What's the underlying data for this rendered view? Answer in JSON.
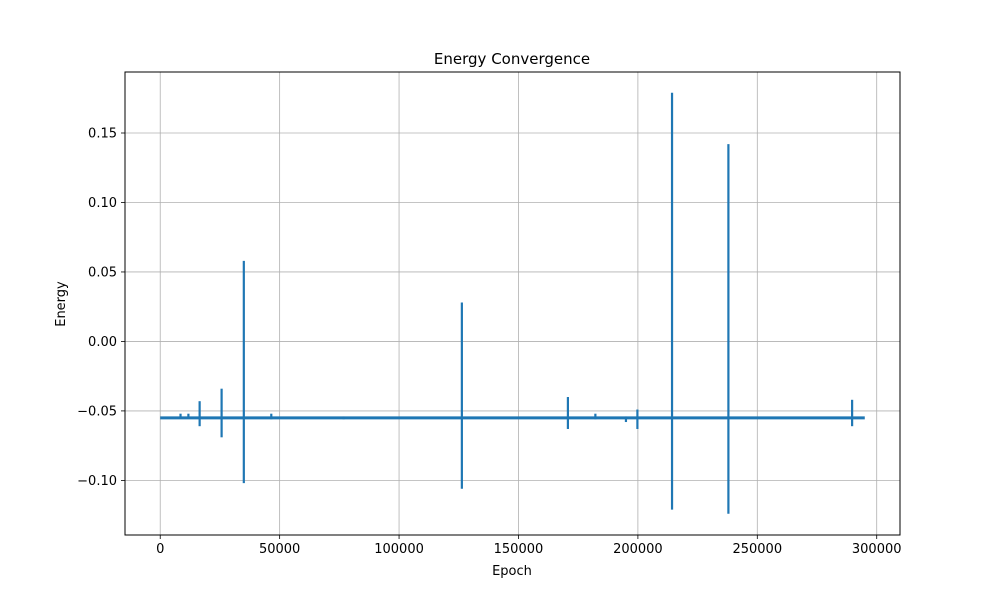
{
  "chart_data": {
    "type": "line",
    "title": "Energy Convergence",
    "xlabel": "Epoch",
    "ylabel": "Energy",
    "xlim": [
      -14750,
      309750
    ],
    "ylim": [
      -0.1393,
      0.1939
    ],
    "grid": true,
    "legend": "none",
    "xticks": [
      0,
      50000,
      100000,
      150000,
      200000,
      250000,
      300000
    ],
    "xtick_labels": [
      "0",
      "50000",
      "100000",
      "150000",
      "200000",
      "250000",
      "300000"
    ],
    "yticks": [
      -0.1,
      -0.05,
      0.0,
      0.05,
      0.1,
      0.15
    ],
    "ytick_labels": [
      "−0.10",
      "−0.05",
      "0.00",
      "0.05",
      "0.10",
      "0.15"
    ],
    "series": [
      {
        "color": "#1f77b4",
        "baseline": -0.055,
        "x_range": [
          0,
          295000
        ],
        "spikes": [
          {
            "x": 8500,
            "min": -0.055,
            "max": -0.052
          },
          {
            "x": 11800,
            "min": -0.055,
            "max": -0.052
          },
          {
            "x": 16500,
            "min": -0.061,
            "max": -0.043
          },
          {
            "x": 25700,
            "min": -0.069,
            "max": -0.034
          },
          {
            "x": 35000,
            "min": -0.102,
            "max": 0.058
          },
          {
            "x": 46500,
            "min": -0.056,
            "max": -0.052
          },
          {
            "x": 76800,
            "min": -0.056,
            "max": -0.054
          },
          {
            "x": 126300,
            "min": -0.106,
            "max": 0.028
          },
          {
            "x": 170700,
            "min": -0.063,
            "max": -0.04
          },
          {
            "x": 182200,
            "min": -0.056,
            "max": -0.052
          },
          {
            "x": 195000,
            "min": -0.058,
            "max": -0.054
          },
          {
            "x": 199800,
            "min": -0.063,
            "max": -0.049
          },
          {
            "x": 214300,
            "min": -0.121,
            "max": 0.179
          },
          {
            "x": 237900,
            "min": -0.124,
            "max": 0.142
          },
          {
            "x": 289700,
            "min": -0.061,
            "max": -0.042
          }
        ]
      }
    ]
  }
}
